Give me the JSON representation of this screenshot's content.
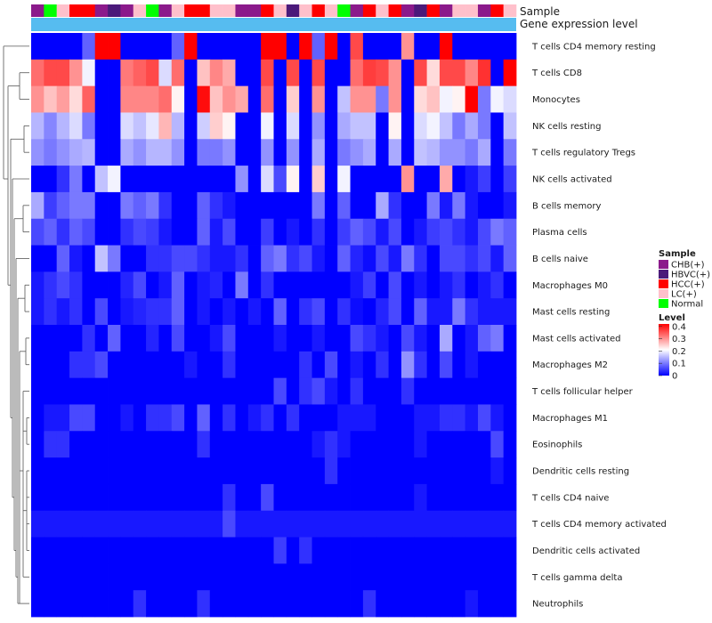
{
  "chart_data": {
    "type": "heatmap",
    "annotation_labels": {
      "sample": "Sample",
      "gene": "Gene expression level"
    },
    "sample_legend": {
      "title": "Sample",
      "items": [
        {
          "label": "CHB(+)",
          "color": "#8B1A8B"
        },
        {
          "label": "HBVC(+)",
          "color": "#4B1A7A"
        },
        {
          "label": "HCC(+)",
          "color": "#FF0000"
        },
        {
          "label": "LC(+)",
          "color": "#FFC0CB"
        },
        {
          "label": "Normal",
          "color": "#00FF00"
        }
      ]
    },
    "level_legend": {
      "title": "Level",
      "ticks": [
        0.4,
        0.3,
        0.2,
        0.1,
        0
      ],
      "range": [
        0,
        0.42
      ],
      "colors": [
        "#0000FF",
        "#FFFFFF",
        "#FF0000"
      ]
    },
    "gene_bar_color": "#56BCF0",
    "samples": [
      "CHB(+)",
      "Normal",
      "LC(+)",
      "HCC(+)",
      "HCC(+)",
      "CHB(+)",
      "HBVC(+)",
      "CHB(+)",
      "LC(+)",
      "Normal",
      "CHB(+)",
      "LC(+)",
      "HCC(+)",
      "HCC(+)",
      "LC(+)",
      "LC(+)",
      "CHB(+)",
      "CHB(+)",
      "HCC(+)",
      "LC(+)",
      "HBVC(+)",
      "LC(+)",
      "HCC(+)",
      "LC(+)",
      "Normal",
      "CHB(+)",
      "HCC(+)",
      "LC(+)",
      "HCC(+)",
      "CHB(+)",
      "HBVC(+)",
      "HCC(+)",
      "CHB(+)",
      "LC(+)",
      "LC(+)",
      "CHB(+)",
      "HCC(+)",
      "LC(+)"
    ],
    "rows": [
      "T cells CD4 memory resting",
      "T cells CD8",
      "Monocytes",
      "NK cells resting",
      "T cells regulatory  Tregs",
      "NK cells activated",
      "B cells memory",
      "Plasma cells",
      "B cells naive",
      "Macrophages M0",
      "Mast cells resting",
      "Mast cells activated",
      "Macrophages M2",
      "T cells follicular helper",
      "Macrophages M1",
      "Eosinophils",
      "Dendritic cells resting",
      "T cells CD4 naive",
      "T cells CD4 memory activated",
      "Dendritic cells activated",
      "T cells gamma delta",
      "Neutrophils"
    ],
    "values": [
      [
        0,
        0,
        0,
        0,
        0.08,
        0.42,
        0.42,
        0,
        0,
        0,
        0,
        0.08,
        0.42,
        0,
        0,
        0,
        0,
        0,
        0.42,
        0.42,
        0,
        0.42,
        0.08,
        0.42,
        0,
        0.36,
        0,
        0,
        0,
        0.3,
        0,
        0,
        0.42,
        0,
        0,
        0,
        0,
        0
      ],
      [
        0.33,
        0.36,
        0.36,
        0.3,
        0.2,
        0,
        0,
        0.32,
        0.34,
        0.36,
        0.18,
        0.33,
        0,
        0.26,
        0.31,
        0.28,
        0,
        0,
        0.36,
        0,
        0.36,
        0,
        0.36,
        0,
        0,
        0.33,
        0.37,
        0.36,
        0.3,
        0,
        0.36,
        0.24,
        0.36,
        0.36,
        0.31,
        0.38,
        0,
        0.42
      ],
      [
        0.3,
        0.26,
        0.29,
        0.24,
        0.34,
        0,
        0,
        0.31,
        0.31,
        0.31,
        0.33,
        0.22,
        0,
        0.41,
        0.26,
        0.3,
        0.28,
        0,
        0.33,
        0,
        0.25,
        0,
        0.3,
        0,
        0.16,
        0.3,
        0.3,
        0.1,
        0.3,
        0,
        0.24,
        0.26,
        0.2,
        0.22,
        0.42,
        0.1,
        0.2,
        0.18
      ],
      [
        0.15,
        0.11,
        0.15,
        0.18,
        0.1,
        0,
        0,
        0.18,
        0.16,
        0.19,
        0.27,
        0.15,
        0,
        0.17,
        0.25,
        0.22,
        0,
        0,
        0.2,
        0,
        0.18,
        0,
        0.12,
        0,
        0.14,
        0.16,
        0.16,
        0,
        0.22,
        0,
        0.18,
        0.2,
        0.16,
        0.1,
        0.14,
        0.1,
        0,
        0.16
      ],
      [
        0.12,
        0.1,
        0.12,
        0.14,
        0.15,
        0,
        0,
        0.14,
        0.12,
        0.15,
        0.15,
        0.12,
        0,
        0.1,
        0.1,
        0.12,
        0,
        0,
        0.12,
        0,
        0.12,
        0,
        0.14,
        0,
        0.1,
        0.12,
        0.14,
        0,
        0.14,
        0,
        0.16,
        0.15,
        0.12,
        0.12,
        0.1,
        0.14,
        0,
        0.1
      ],
      [
        0,
        0,
        0.04,
        0.1,
        0,
        0.16,
        0.2,
        0,
        0,
        0,
        0,
        0,
        0,
        0,
        0,
        0,
        0.12,
        0,
        0.18,
        0.06,
        0.22,
        0,
        0.25,
        0,
        0.2,
        0,
        0,
        0,
        0,
        0.3,
        0,
        0,
        0.28,
        0,
        0.02,
        0.05,
        0,
        0.05
      ],
      [
        0.14,
        0.05,
        0.08,
        0.1,
        0.1,
        0,
        0,
        0.1,
        0.08,
        0.1,
        0.04,
        0,
        0,
        0.08,
        0.04,
        0.02,
        0,
        0,
        0,
        0,
        0,
        0,
        0.1,
        0,
        0.08,
        0,
        0,
        0.14,
        0.04,
        0,
        0,
        0.1,
        0.02,
        0.1,
        0.02,
        0,
        0,
        0.02
      ],
      [
        0.06,
        0.08,
        0.04,
        0.08,
        0.06,
        0,
        0,
        0.04,
        0.06,
        0.05,
        0.02,
        0,
        0,
        0.08,
        0.02,
        0.06,
        0,
        0,
        0.05,
        0,
        0.02,
        0,
        0.04,
        0,
        0.05,
        0.08,
        0.06,
        0.02,
        0.06,
        0,
        0.02,
        0.05,
        0.06,
        0.04,
        0.02,
        0.06,
        0.1,
        0.08
      ],
      [
        0,
        0,
        0.08,
        0.02,
        0,
        0.16,
        0.1,
        0,
        0,
        0.04,
        0.04,
        0.06,
        0.06,
        0.04,
        0.02,
        0.02,
        0.04,
        0,
        0.08,
        0.1,
        0.04,
        0.06,
        0.02,
        0,
        0.08,
        0.03,
        0.01,
        0.06,
        0.02,
        0.1,
        0.04,
        0,
        0.06,
        0.06,
        0.04,
        0.06,
        0.02,
        0.08
      ],
      [
        0.02,
        0.04,
        0.06,
        0.04,
        0,
        0,
        0,
        0.03,
        0.06,
        0,
        0.02,
        0.08,
        0,
        0.02,
        0.03,
        0,
        0.1,
        0,
        0.04,
        0,
        0,
        0,
        0,
        0,
        0,
        0.02,
        0.05,
        0,
        0.06,
        0,
        0.02,
        0,
        0.02,
        0.04,
        0,
        0.02,
        0.04,
        0
      ],
      [
        0.02,
        0.04,
        0.02,
        0.04,
        0,
        0.06,
        0,
        0.02,
        0.03,
        0.04,
        0.04,
        0.08,
        0,
        0.02,
        0,
        0.02,
        0,
        0.02,
        0,
        0.08,
        0,
        0.04,
        0.06,
        0,
        0.04,
        0.01,
        0,
        0.03,
        0.06,
        0,
        0.08,
        0.02,
        0.02,
        0.1,
        0.04,
        0.02,
        0.02,
        0.02
      ],
      [
        0,
        0,
        0,
        0,
        0.04,
        0,
        0.08,
        0,
        0,
        0.03,
        0,
        0.06,
        0,
        0,
        0.02,
        0.06,
        0,
        0,
        0,
        0.02,
        0,
        0,
        0.02,
        0,
        0,
        0.06,
        0.04,
        0.02,
        0,
        0.06,
        0.02,
        0,
        0.14,
        0,
        0.02,
        0.08,
        0.1,
        0
      ],
      [
        0,
        0,
        0,
        0.04,
        0.04,
        0.06,
        0,
        0,
        0,
        0,
        0,
        0,
        0.02,
        0,
        0,
        0.04,
        0,
        0,
        0,
        0,
        0,
        0.04,
        0,
        0.06,
        0,
        0.02,
        0,
        0.04,
        0,
        0.12,
        0.04,
        0,
        0.06,
        0,
        0.02,
        0,
        0,
        0
      ],
      [
        0,
        0,
        0,
        0,
        0,
        0,
        0,
        0,
        0,
        0,
        0,
        0,
        0,
        0,
        0,
        0,
        0,
        0,
        0,
        0.06,
        0,
        0.04,
        0.06,
        0.02,
        0,
        0.04,
        0,
        0,
        0,
        0.04,
        0,
        0,
        0,
        0,
        0,
        0,
        0,
        0
      ],
      [
        0,
        0.02,
        0.02,
        0.06,
        0.06,
        0,
        0,
        0.02,
        0,
        0.04,
        0.04,
        0.06,
        0,
        0.08,
        0,
        0.04,
        0,
        0.02,
        0.04,
        0,
        0.04,
        0,
        0,
        0,
        0.02,
        0.02,
        0.02,
        0,
        0,
        0,
        0.02,
        0.02,
        0.04,
        0.04,
        0.02,
        0.06,
        0.02,
        0
      ],
      [
        0,
        0.04,
        0.04,
        0,
        0,
        0,
        0,
        0,
        0,
        0,
        0,
        0,
        0,
        0.04,
        0,
        0,
        0,
        0,
        0,
        0,
        0,
        0,
        0.02,
        0.04,
        0.02,
        0,
        0,
        0,
        0,
        0,
        0.02,
        0,
        0,
        0,
        0,
        0,
        0.06,
        0
      ],
      [
        0,
        0,
        0,
        0,
        0,
        0,
        0,
        0,
        0,
        0,
        0,
        0,
        0,
        0,
        0,
        0,
        0,
        0,
        0,
        0,
        0,
        0,
        0,
        0.04,
        0,
        0,
        0,
        0,
        0,
        0,
        0,
        0,
        0,
        0,
        0,
        0,
        0.02,
        0
      ],
      [
        0,
        0,
        0,
        0,
        0,
        0,
        0,
        0,
        0,
        0,
        0,
        0,
        0,
        0,
        0,
        0.04,
        0,
        0,
        0.06,
        0,
        0,
        0,
        0,
        0,
        0,
        0,
        0,
        0,
        0,
        0,
        0.02,
        0,
        0,
        0,
        0,
        0,
        0,
        0
      ],
      [
        0.02,
        0.02,
        0.02,
        0.02,
        0.02,
        0.02,
        0.02,
        0.02,
        0.02,
        0.02,
        0.02,
        0.02,
        0.02,
        0.02,
        0.02,
        0.06,
        0.02,
        0.02,
        0.02,
        0.02,
        0.02,
        0.02,
        0.02,
        0.02,
        0.02,
        0.02,
        0.02,
        0.02,
        0.02,
        0.02,
        0.02,
        0.02,
        0.02,
        0.02,
        0.02,
        0.02,
        0.02,
        0.02
      ],
      [
        0,
        0,
        0,
        0,
        0,
        0,
        0,
        0,
        0,
        0,
        0,
        0,
        0,
        0,
        0,
        0,
        0,
        0,
        0,
        0.05,
        0,
        0.04,
        0,
        0,
        0,
        0,
        0,
        0,
        0,
        0,
        0,
        0,
        0,
        0,
        0,
        0,
        0,
        0
      ],
      [
        0,
        0,
        0,
        0,
        0,
        0,
        0,
        0,
        0,
        0,
        0,
        0,
        0,
        0,
        0,
        0,
        0,
        0,
        0,
        0,
        0,
        0,
        0,
        0,
        0,
        0,
        0,
        0,
        0,
        0,
        0,
        0,
        0,
        0,
        0,
        0,
        0,
        0
      ],
      [
        0,
        0,
        0,
        0,
        0,
        0,
        0,
        0,
        0.04,
        0,
        0,
        0,
        0,
        0.04,
        0,
        0,
        0,
        0,
        0,
        0,
        0,
        0,
        0,
        0,
        0,
        0,
        0.04,
        0,
        0,
        0,
        0,
        0,
        0,
        0,
        0.02,
        0,
        0,
        0
      ]
    ]
  }
}
